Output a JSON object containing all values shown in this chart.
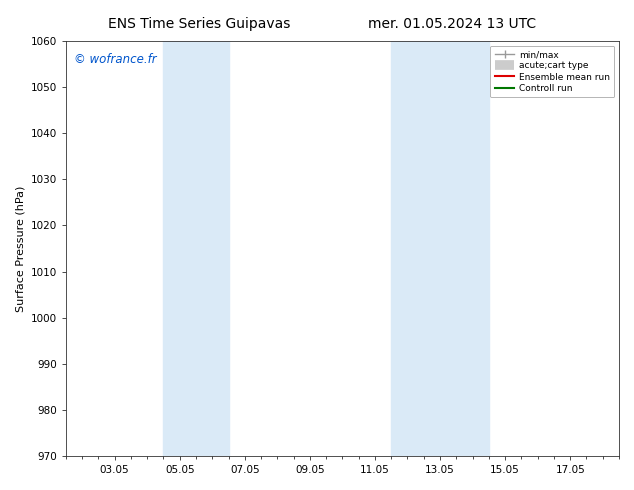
{
  "title_left": "ENS Time Series Guipavas",
  "title_right": "mer. 01.05.2024 13 UTC",
  "ylabel": "Surface Pressure (hPa)",
  "ylim": [
    970,
    1060
  ],
  "yticks": [
    970,
    980,
    990,
    1000,
    1010,
    1020,
    1030,
    1040,
    1050,
    1060
  ],
  "xtick_labels": [
    "03.05",
    "05.05",
    "07.05",
    "09.05",
    "11.05",
    "13.05",
    "15.05",
    "17.05"
  ],
  "xtick_positions": [
    2,
    4,
    6,
    8,
    10,
    12,
    14,
    16
  ],
  "xlim": [
    0.5,
    17.5
  ],
  "shaded_bands": [
    {
      "xmin": 3.5,
      "xmax": 5.5
    },
    {
      "xmin": 10.5,
      "xmax": 13.5
    }
  ],
  "shaded_color": "#daeaf7",
  "watermark": "© wofrance.fr",
  "watermark_color": "#0055cc",
  "bg_color": "#ffffff",
  "axes_bg_color": "#ffffff",
  "spine_color": "#333333",
  "title_fontsize": 10,
  "label_fontsize": 8,
  "tick_fontsize": 7.5
}
